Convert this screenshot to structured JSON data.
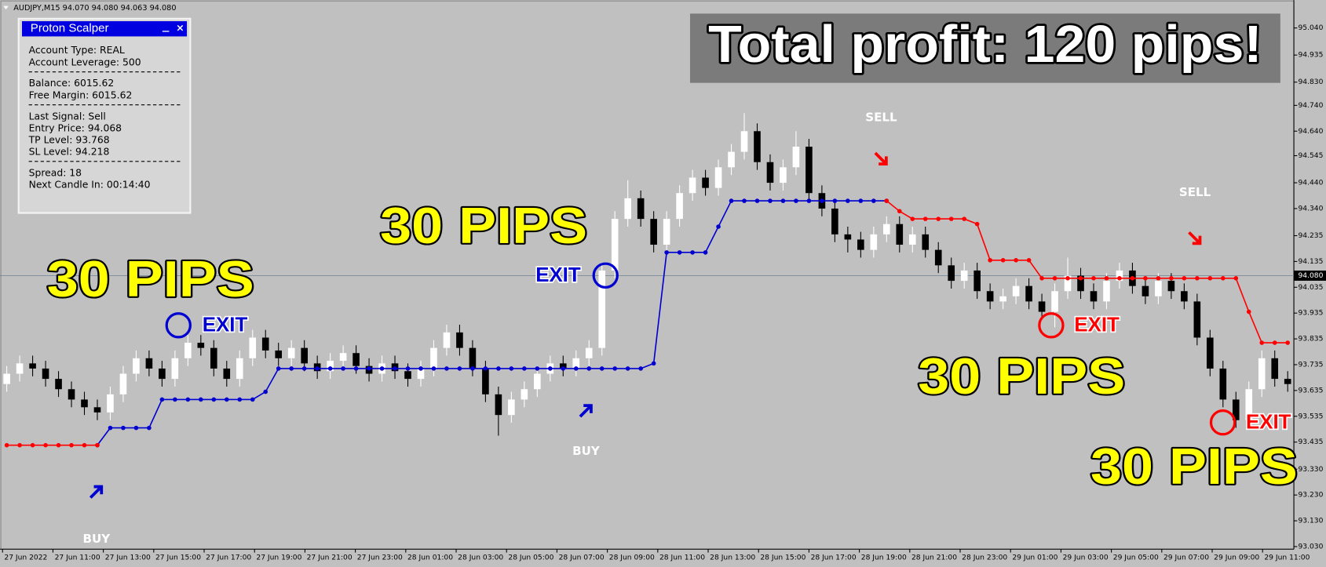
{
  "chart_data": {
    "type": "candlestick",
    "header": "AUDJPY,M15  94.070 94.080 94.063 94.080",
    "ylim": [
      93.02,
      95.148
    ],
    "yticks": [
      {
        "value": 95.04,
        "label": "95.040"
      },
      94.935,
      {
        "value": 94.83,
        "label": "94.830"
      },
      {
        "value": 94.74,
        "label": "94.740"
      },
      {
        "value": 94.64,
        "label": "94.640"
      },
      94.545,
      {
        "value": 94.44,
        "label": "94.440"
      },
      {
        "value": 94.34,
        "label": "94.340"
      },
      94.235,
      94.135,
      94.035,
      93.935,
      93.835,
      93.735,
      93.635,
      93.535,
      93.435,
      {
        "value": 93.33,
        "label": "93.330"
      },
      {
        "value": 93.23,
        "label": "93.230"
      },
      {
        "value": 93.13,
        "label": "93.130"
      },
      {
        "value": 93.03,
        "label": "93.030"
      }
    ],
    "current_price": {
      "value": 94.08,
      "label": "94.080"
    },
    "xtick_labels": [
      "27 Jun 2022",
      "27 Jun 11:00",
      "27 Jun 13:00",
      "27 Jun 15:00",
      "27 Jun 17:00",
      "27 Jun 19:00",
      "27 Jun 21:00",
      "27 Jun 23:00",
      "28 Jun 01:00",
      "28 Jun 03:00",
      "28 Jun 05:00",
      "28 Jun 07:00",
      "28 Jun 09:00",
      "28 Jun 11:00",
      "28 Jun 13:00",
      "28 Jun 15:00",
      "28 Jun 17:00",
      "28 Jun 19:00",
      "28 Jun 21:00",
      "28 Jun 23:00",
      "29 Jun 01:00",
      "29 Jun 03:00",
      "29 Jun 05:00",
      "29 Jun 07:00",
      "29 Jun 09:00",
      "29 Jun 11:00"
    ],
    "candles": {
      "open": [
        93.66,
        93.7,
        93.74,
        93.72,
        93.68,
        93.64,
        93.6,
        93.57,
        93.55,
        93.62,
        93.7,
        93.76,
        93.72,
        93.68,
        93.76,
        93.82,
        93.8,
        93.72,
        93.68,
        93.76,
        93.84,
        93.79,
        93.76,
        93.8,
        93.74,
        93.71,
        93.75,
        93.78,
        93.73,
        93.7,
        93.74,
        93.71,
        93.68,
        93.72,
        93.8,
        93.86,
        93.8,
        93.72,
        93.62,
        93.54,
        93.6,
        93.64,
        93.7,
        93.74,
        93.72,
        93.76,
        93.8,
        94.1,
        94.3,
        94.38,
        94.3,
        94.2,
        94.3,
        94.4,
        94.46,
        94.42,
        94.5,
        94.56,
        94.64,
        94.52,
        94.44,
        94.5,
        94.58,
        94.4,
        94.34,
        94.24,
        94.22,
        94.18,
        94.24,
        94.28,
        94.2,
        94.24,
        94.18,
        94.12,
        94.06,
        94.1,
        94.02,
        93.98,
        94.0,
        94.04,
        93.98,
        93.94,
        94.02,
        94.08,
        94.02,
        93.98,
        94.06,
        94.1,
        94.04,
        94.0,
        94.06,
        94.02,
        93.98,
        93.84,
        93.72,
        93.6,
        93.52,
        93.64,
        93.76,
        93.68
      ],
      "high": [
        93.73,
        93.77,
        93.77,
        93.75,
        93.71,
        93.67,
        93.63,
        93.6,
        93.65,
        93.73,
        93.79,
        93.79,
        93.75,
        93.79,
        93.85,
        93.85,
        93.83,
        93.75,
        93.79,
        93.87,
        93.87,
        93.82,
        93.83,
        93.83,
        93.77,
        93.78,
        93.81,
        93.81,
        93.76,
        93.77,
        93.77,
        93.74,
        93.75,
        93.83,
        93.89,
        93.89,
        93.83,
        93.75,
        93.65,
        93.63,
        93.67,
        93.73,
        93.77,
        93.77,
        93.79,
        93.83,
        94.13,
        94.33,
        94.45,
        94.41,
        94.33,
        94.33,
        94.43,
        94.49,
        94.49,
        94.53,
        94.59,
        94.71,
        94.67,
        94.55,
        94.53,
        94.64,
        94.61,
        94.43,
        94.37,
        94.27,
        94.25,
        94.27,
        94.31,
        94.31,
        94.27,
        94.27,
        94.21,
        94.15,
        94.13,
        94.13,
        94.05,
        94.03,
        94.07,
        94.07,
        94.01,
        94.05,
        94.15,
        94.11,
        94.05,
        94.09,
        94.13,
        94.13,
        94.07,
        94.09,
        94.09,
        94.05,
        94.01,
        93.87,
        93.75,
        93.63,
        93.67,
        93.79,
        93.79,
        93.71
      ],
      "low": [
        93.63,
        93.67,
        93.69,
        93.65,
        93.61,
        93.57,
        93.54,
        93.52,
        93.52,
        93.59,
        93.67,
        93.69,
        93.65,
        93.65,
        93.73,
        93.77,
        93.69,
        93.65,
        93.65,
        93.73,
        93.76,
        93.73,
        93.73,
        93.71,
        93.68,
        93.68,
        93.72,
        93.7,
        93.67,
        93.67,
        93.68,
        93.65,
        93.65,
        93.69,
        93.77,
        93.77,
        93.69,
        93.59,
        93.46,
        93.51,
        93.57,
        93.61,
        93.67,
        93.69,
        93.69,
        93.73,
        93.77,
        94.07,
        94.27,
        94.27,
        94.17,
        94.17,
        94.27,
        94.37,
        94.39,
        94.39,
        94.47,
        94.53,
        94.49,
        94.41,
        94.41,
        94.47,
        94.37,
        94.31,
        94.21,
        94.17,
        94.15,
        94.15,
        94.21,
        94.17,
        94.17,
        94.15,
        94.09,
        94.03,
        94.03,
        93.99,
        93.95,
        93.95,
        93.97,
        93.95,
        93.91,
        93.88,
        93.99,
        93.99,
        93.95,
        93.95,
        94.03,
        94.01,
        93.97,
        93.97,
        93.99,
        93.95,
        93.81,
        93.69,
        93.57,
        93.49,
        93.49,
        93.61,
        93.65,
        93.63
      ],
      "close": [
        93.7,
        93.74,
        93.72,
        93.68,
        93.64,
        93.6,
        93.57,
        93.55,
        93.62,
        93.7,
        93.76,
        93.72,
        93.68,
        93.76,
        93.82,
        93.8,
        93.72,
        93.68,
        93.76,
        93.84,
        93.79,
        93.76,
        93.8,
        93.74,
        93.71,
        93.75,
        93.78,
        93.73,
        93.7,
        93.74,
        93.71,
        93.68,
        93.72,
        93.8,
        93.86,
        93.8,
        93.72,
        93.62,
        93.54,
        93.6,
        93.64,
        93.7,
        93.74,
        93.72,
        93.76,
        93.8,
        94.1,
        94.3,
        94.38,
        94.3,
        94.2,
        94.3,
        94.4,
        94.46,
        94.42,
        94.5,
        94.56,
        94.64,
        94.52,
        94.44,
        94.5,
        94.58,
        94.4,
        94.34,
        94.24,
        94.22,
        94.18,
        94.24,
        94.28,
        94.2,
        94.24,
        94.18,
        94.12,
        94.06,
        94.1,
        94.02,
        93.98,
        94.0,
        94.04,
        93.98,
        93.94,
        94.02,
        94.08,
        94.02,
        93.98,
        94.06,
        94.1,
        94.04,
        94.0,
        94.06,
        94.02,
        93.98,
        93.84,
        93.72,
        93.6,
        93.52,
        93.64,
        93.76,
        93.68,
        93.66
      ]
    },
    "series": [
      {
        "color": "#0000d0",
        "values": [
          null,
          null,
          null,
          null,
          null,
          null,
          null,
          93.423,
          93.49,
          93.49,
          93.49,
          93.49,
          93.6,
          93.6,
          93.6,
          93.6,
          93.6,
          93.6,
          93.6,
          93.6,
          93.63,
          93.72,
          93.72,
          93.72,
          93.72,
          93.72,
          93.72,
          93.72,
          93.72,
          93.72,
          93.72,
          93.72,
          93.72,
          93.72,
          93.72,
          93.72,
          93.72,
          93.72,
          93.72,
          93.72,
          93.72,
          93.72,
          93.72,
          93.72,
          93.72,
          93.72,
          93.72,
          93.72,
          93.72,
          93.72,
          93.74,
          94.17,
          94.17,
          94.17,
          94.17,
          94.27,
          94.37,
          94.37,
          94.37,
          94.37,
          94.37,
          94.37,
          94.37,
          94.37,
          94.37,
          94.37,
          94.37,
          94.37,
          94.37,
          null,
          null,
          null,
          null,
          null,
          null,
          null,
          null,
          null,
          null,
          null,
          null,
          null,
          null,
          null,
          null,
          null,
          null,
          null,
          null,
          null,
          null,
          null,
          null,
          null,
          null,
          null,
          null,
          null,
          null,
          null
        ]
      },
      {
        "color": "#ff0000",
        "values": [
          93.423,
          93.423,
          93.423,
          93.423,
          93.423,
          93.423,
          93.423,
          93.423,
          null,
          null,
          null,
          null,
          null,
          null,
          null,
          null,
          null,
          null,
          null,
          null,
          null,
          null,
          null,
          null,
          null,
          null,
          null,
          null,
          null,
          null,
          null,
          null,
          null,
          null,
          null,
          null,
          null,
          null,
          null,
          null,
          null,
          null,
          null,
          null,
          null,
          null,
          null,
          null,
          null,
          null,
          null,
          null,
          null,
          null,
          null,
          null,
          null,
          null,
          null,
          null,
          null,
          null,
          null,
          null,
          null,
          null,
          null,
          null,
          94.37,
          94.33,
          94.3,
          94.3,
          94.3,
          94.3,
          94.3,
          94.28,
          94.14,
          94.14,
          94.14,
          94.14,
          94.07,
          94.07,
          94.07,
          94.07,
          94.07,
          94.07,
          94.07,
          94.07,
          94.07,
          94.07,
          94.07,
          94.07,
          94.07,
          94.07,
          94.07,
          94.07,
          93.94,
          93.82,
          93.82,
          93.82
        ]
      }
    ],
    "total_profit": "Total profit: 120 pips!",
    "pips_labels": [
      "30 PIPS",
      "30 PIPS",
      "30 PIPS",
      "30 PIPS"
    ],
    "exit_labels": [
      "EXIT",
      "EXIT",
      "EXIT",
      "EXIT"
    ],
    "signal_labels": [
      "BUY",
      "BUY",
      "SELL",
      "SELL"
    ]
  },
  "panel": {
    "title": "Proton Scalper",
    "groups": [
      [
        "Account Type: REAL",
        "Account Leverage: 500"
      ],
      [
        "Balance: 6015.62",
        "Free Margin: 6015.62"
      ],
      [
        "Last Signal: Sell",
        "Entry Price: 94.068",
        "TP Level: 93.768",
        "SL Level: 94.218"
      ],
      [
        "Spread: 18",
        "Next Candle In: 00:14:40"
      ]
    ]
  }
}
